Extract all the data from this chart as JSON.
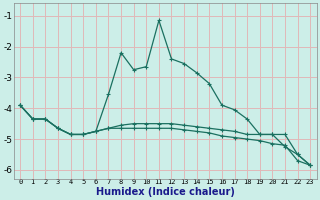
{
  "xlabel": "Humidex (Indice chaleur)",
  "xlim": [
    -0.5,
    23.5
  ],
  "ylim": [
    -6.3,
    -0.6
  ],
  "yticks": [
    -6,
    -5,
    -4,
    -3,
    -2,
    -1
  ],
  "xticks": [
    0,
    1,
    2,
    3,
    4,
    5,
    6,
    7,
    8,
    9,
    10,
    11,
    12,
    13,
    14,
    15,
    16,
    17,
    18,
    19,
    20,
    21,
    22,
    23
  ],
  "bg_color": "#cceee8",
  "grid_color": "#e0b8b8",
  "line_color": "#1a7060",
  "line1_y": [
    -3.9,
    -4.35,
    -4.35,
    -4.65,
    -4.85,
    -4.85,
    -4.75,
    -3.55,
    -2.2,
    -2.75,
    -2.65,
    -1.15,
    -2.4,
    -2.55,
    -2.85,
    -3.2,
    -3.9,
    -4.05,
    -4.35,
    -4.85,
    -4.85,
    -5.25,
    -5.5,
    -5.85
  ],
  "line2_y": [
    -3.9,
    -4.35,
    -4.35,
    -4.65,
    -4.85,
    -4.85,
    -4.75,
    -4.65,
    -4.55,
    -4.5,
    -4.5,
    -4.5,
    -4.5,
    -4.55,
    -4.6,
    -4.65,
    -4.7,
    -4.75,
    -4.85,
    -4.85,
    -4.85,
    -4.85,
    -5.5,
    -5.85
  ],
  "line3_y": [
    -3.9,
    -4.35,
    -4.35,
    -4.65,
    -4.85,
    -4.85,
    -4.75,
    -4.65,
    -4.65,
    -4.65,
    -4.65,
    -4.65,
    -4.65,
    -4.7,
    -4.75,
    -4.8,
    -4.9,
    -4.95,
    -5.0,
    -5.05,
    -5.15,
    -5.2,
    -5.7,
    -5.85
  ]
}
